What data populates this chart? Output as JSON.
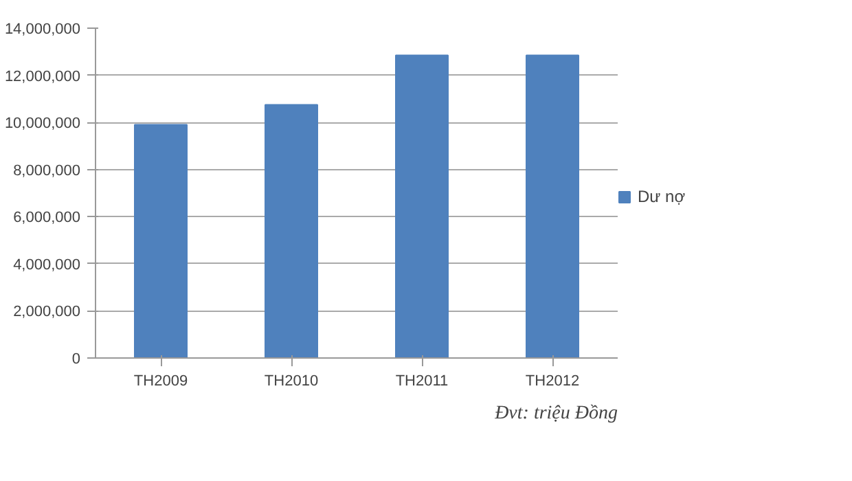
{
  "chart_data": {
    "type": "bar",
    "categories": [
      "TH2009",
      "TH2010",
      "TH2011",
      "TH2012"
    ],
    "series": [
      {
        "name": "Dư nợ",
        "color": "#4f81bd",
        "values": [
          9900000,
          10750000,
          12850000,
          12850000
        ]
      }
    ],
    "ylim": [
      0,
      14000000
    ],
    "yticks": [
      {
        "value": 0,
        "label": "0"
      },
      {
        "value": 2000000,
        "label": "2,000,000"
      },
      {
        "value": 4000000,
        "label": "4,000,000"
      },
      {
        "value": 6000000,
        "label": "6,000,000"
      },
      {
        "value": 8000000,
        "label": "8,000,000"
      },
      {
        "value": 10000000,
        "label": "10,000,000"
      },
      {
        "value": 12000000,
        "label": "12,000,000"
      },
      {
        "value": 14000000,
        "label": "14,000,000"
      }
    ],
    "grid": "y",
    "legend": "right",
    "annotations": [
      "Đvt: triệu Đồng"
    ]
  }
}
